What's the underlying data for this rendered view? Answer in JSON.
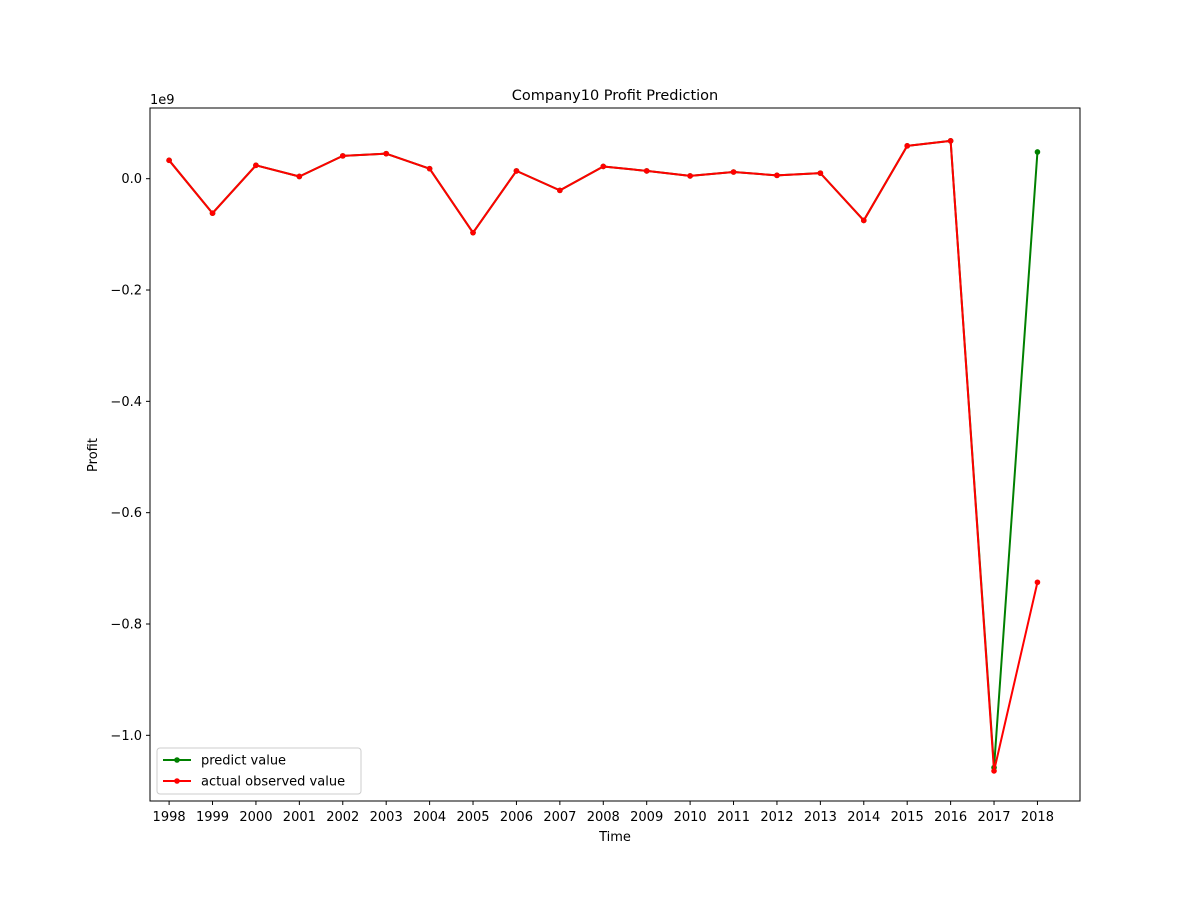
{
  "chart_data": {
    "type": "line",
    "title": "Company10 Profit Prediction",
    "xlabel": "Time",
    "ylabel": "Profit",
    "y_offset_label": "1e9",
    "y_scale": 1000000000,
    "x": [
      1998,
      1999,
      2000,
      2001,
      2002,
      2003,
      2004,
      2005,
      2006,
      2007,
      2008,
      2009,
      2010,
      2011,
      2012,
      2013,
      2014,
      2015,
      2016,
      2017,
      2018
    ],
    "xlim": [
      1997.56,
      2018.98
    ],
    "ylim": [
      -1118000000.0,
      127000000.0
    ],
    "yticks": [
      {
        "value": 0.0,
        "label": "0.0"
      },
      {
        "value": -200000000,
        "label": "−0.2"
      },
      {
        "value": -400000000,
        "label": "−0.4"
      },
      {
        "value": -600000000,
        "label": "−0.6"
      },
      {
        "value": -800000000,
        "label": "−0.8"
      },
      {
        "value": -1000000000,
        "label": "−1.0"
      }
    ],
    "xticklabels": [
      "1998",
      "1999",
      "2000",
      "2001",
      "2002",
      "2003",
      "2004",
      "2005",
      "2006",
      "2007",
      "2008",
      "2009",
      "2010",
      "2011",
      "2012",
      "2013",
      "2014",
      "2015",
      "2016",
      "2017",
      "2018"
    ],
    "series": [
      {
        "name": "predict value",
        "color": "#008000",
        "values": [
          33000000,
          -62000000,
          24000000,
          4000000,
          41000000,
          45000000,
          18000000,
          -97000000,
          14000000,
          -21000000,
          22000000,
          14000000,
          5000000,
          12000000,
          6000000,
          10000000,
          -75000000,
          59000000,
          68000000,
          -1058000000,
          48000000
        ]
      },
      {
        "name": "actual observed value",
        "color": "#ff0000",
        "values": [
          33000000,
          -62000000,
          24000000,
          4000000,
          41000000,
          45000000,
          18000000,
          -97000000,
          14000000,
          -21000000,
          22000000,
          14000000,
          5000000,
          12000000,
          6000000,
          10000000,
          -75000000,
          59000000,
          68000000,
          -1064000000,
          -725000000
        ]
      }
    ],
    "legend_location": "lower-left",
    "grid": false
  }
}
